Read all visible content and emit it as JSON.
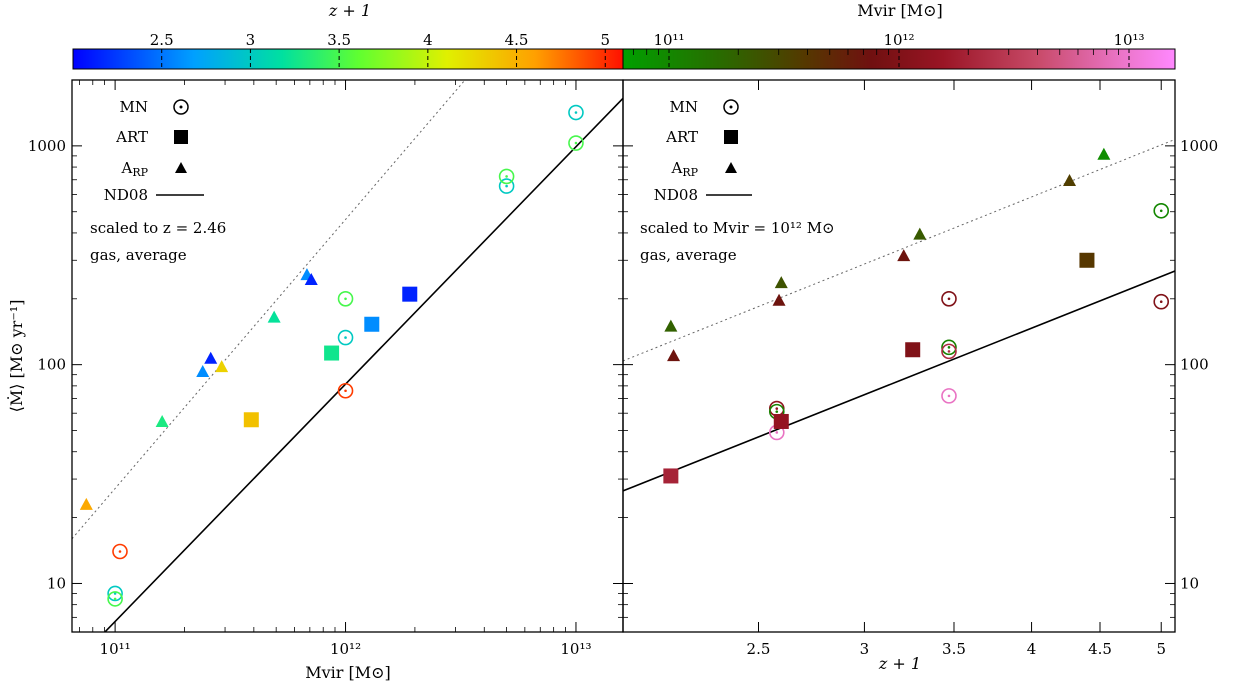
{
  "colorbars": {
    "left": {
      "label": "z + 1",
      "ticks": [
        "2.5",
        "3",
        "3.5",
        "4",
        "4.5",
        "5"
      ],
      "tick_values": [
        2.5,
        3,
        3.5,
        4,
        4.5,
        5
      ],
      "range": [
        2.0,
        5.1
      ]
    },
    "right": {
      "label": "Mvir [M⊙]",
      "ticks": [
        "10¹¹",
        "10¹²",
        "10¹³"
      ],
      "tick_exp": [
        11,
        12,
        13
      ],
      "log_range": [
        10.8,
        13.2
      ]
    }
  },
  "panels": {
    "left": {
      "xlabel": "Mvir [M⊙]",
      "ylabel": "⟨Ṁ⟩ [M⊙ yr⁻¹]",
      "xticks": [
        "10¹¹",
        "10¹²",
        "10¹³"
      ],
      "yticks": [
        "10",
        "100",
        "1000"
      ],
      "legend": {
        "mn": "MN",
        "art": "ART",
        "arp": "A",
        "arp_sub": "RP",
        "nd08": "ND08"
      },
      "note1": "scaled to z = 2.46",
      "note2": "gas, average"
    },
    "right": {
      "xlabel": "z + 1",
      "xticks": [
        "2.5",
        "3",
        "3.5",
        "4",
        "4.5",
        "5"
      ],
      "yticks": [
        "10",
        "100",
        "1000"
      ],
      "legend": {
        "mn": "MN",
        "art": "ART",
        "arp": "A",
        "arp_sub": "RP",
        "nd08": "ND08"
      },
      "note1": "scaled to Mvir = 10¹² M⊙",
      "note2": "gas, average"
    }
  },
  "chart_data": [
    {
      "type": "scatter",
      "panel": "left",
      "xlabel": "Mvir [M⊙]",
      "ylabel": "⟨Ṁ⟩ [M⊙ yr⁻¹]",
      "xscale": "log",
      "yscale": "log",
      "xlim": [
        65000000000.0,
        16000000000000.0
      ],
      "ylim": [
        6,
        2000
      ],
      "color_by": "z + 1",
      "series": [
        {
          "name": "MN",
          "marker": "circle-dot",
          "points": [
            {
              "x": 105000000000.0,
              "y": 14,
              "c": 4.95
            },
            {
              "x": 100000000000.0,
              "y": 9,
              "c": 3.0
            },
            {
              "x": 100000000000.0,
              "y": 8.5,
              "c": 3.5
            },
            {
              "x": 1000000000000.0,
              "y": 76,
              "c": 4.95
            },
            {
              "x": 1000000000000.0,
              "y": 133,
              "c": 3.0
            },
            {
              "x": 1000000000000.0,
              "y": 200,
              "c": 3.5
            },
            {
              "x": 5000000000000.0,
              "y": 655,
              "c": 3.0
            },
            {
              "x": 5000000000000.0,
              "y": 725,
              "c": 3.5
            },
            {
              "x": 10000000000000.0,
              "y": 1420,
              "c": 3.0
            },
            {
              "x": 10000000000000.0,
              "y": 1030,
              "c": 3.5
            }
          ]
        },
        {
          "name": "ART",
          "marker": "square",
          "points": [
            {
              "x": 390000000000.0,
              "y": 56,
              "c": 4.4
            },
            {
              "x": 870000000000.0,
              "y": 113,
              "c": 3.25
            },
            {
              "x": 1300000000000.0,
              "y": 153,
              "c": 2.6
            },
            {
              "x": 1900000000000.0,
              "y": 210,
              "c": 2.15
            }
          ]
        },
        {
          "name": "ARP",
          "marker": "triangle",
          "points": [
            {
              "x": 75000000000.0,
              "y": 23,
              "c": 4.55
            },
            {
              "x": 160000000000.0,
              "y": 55,
              "c": 3.3
            },
            {
              "x": 240000000000.0,
              "y": 93,
              "c": 2.6
            },
            {
              "x": 260000000000.0,
              "y": 107,
              "c": 2.15
            },
            {
              "x": 290000000000.0,
              "y": 98,
              "c": 4.3
            },
            {
              "x": 490000000000.0,
              "y": 165,
              "c": 3.2
            },
            {
              "x": 680000000000.0,
              "y": 258,
              "c": 2.6
            },
            {
              "x": 710000000000.0,
              "y": 245,
              "c": 2.15
            }
          ]
        },
        {
          "name": "ND08",
          "style": "solid",
          "line": [
            [
              65000000000.0,
              4.2
            ],
            [
              16000000000000.0,
              1650
            ]
          ]
        },
        {
          "style": "dotted",
          "line": [
            [
              65000000000.0,
              16
            ],
            [
              3300000000000.0,
              2000
            ]
          ]
        }
      ]
    },
    {
      "type": "scatter",
      "panel": "right",
      "xlabel": "z + 1",
      "ylabel": "⟨Ṁ⟩ [M⊙ yr⁻¹]",
      "xscale": "log",
      "yscale": "log",
      "xlim": [
        1.98,
        5.12
      ],
      "ylim": [
        6,
        2000
      ],
      "color_by": "Mvir [M⊙] (log10)",
      "series": [
        {
          "name": "MN",
          "marker": "circle-dot",
          "points": [
            {
              "x": 2.58,
              "y": 63,
              "c": 12.1
            },
            {
              "x": 2.58,
              "y": 61,
              "c": 11.05
            },
            {
              "x": 2.58,
              "y": 49,
              "c": 12.95
            },
            {
              "x": 3.47,
              "y": 200,
              "c": 12.0
            },
            {
              "x": 3.47,
              "y": 120,
              "c": 11.05
            },
            {
              "x": 3.47,
              "y": 115,
              "c": 12.35
            },
            {
              "x": 3.47,
              "y": 72,
              "c": 12.95
            },
            {
              "x": 5.0,
              "y": 505,
              "c": 11.0
            },
            {
              "x": 5.0,
              "y": 194,
              "c": 12.0
            }
          ]
        },
        {
          "name": "ART",
          "marker": "square",
          "points": [
            {
              "x": 2.15,
              "y": 31,
              "c": 12.3
            },
            {
              "x": 2.6,
              "y": 55,
              "c": 12.15
            },
            {
              "x": 3.26,
              "y": 117,
              "c": 12.0
            },
            {
              "x": 4.4,
              "y": 300,
              "c": 11.6
            }
          ]
        },
        {
          "name": "ARP",
          "marker": "triangle",
          "points": [
            {
              "x": 2.15,
              "y": 150,
              "c": 11.3
            },
            {
              "x": 2.16,
              "y": 110,
              "c": 11.85
            },
            {
              "x": 2.6,
              "y": 237,
              "c": 11.4
            },
            {
              "x": 2.59,
              "y": 197,
              "c": 11.85
            },
            {
              "x": 3.21,
              "y": 315,
              "c": 11.85
            },
            {
              "x": 3.3,
              "y": 395,
              "c": 11.35
            },
            {
              "x": 4.27,
              "y": 695,
              "c": 11.55
            },
            {
              "x": 4.53,
              "y": 915,
              "c": 10.95
            }
          ]
        },
        {
          "name": "ND08",
          "style": "solid",
          "line": [
            [
              1.98,
              26.5
            ],
            [
              5.12,
              268
            ]
          ]
        },
        {
          "style": "dotted",
          "line": [
            [
              1.98,
              104
            ],
            [
              5.12,
              1070
            ]
          ]
        }
      ]
    }
  ]
}
